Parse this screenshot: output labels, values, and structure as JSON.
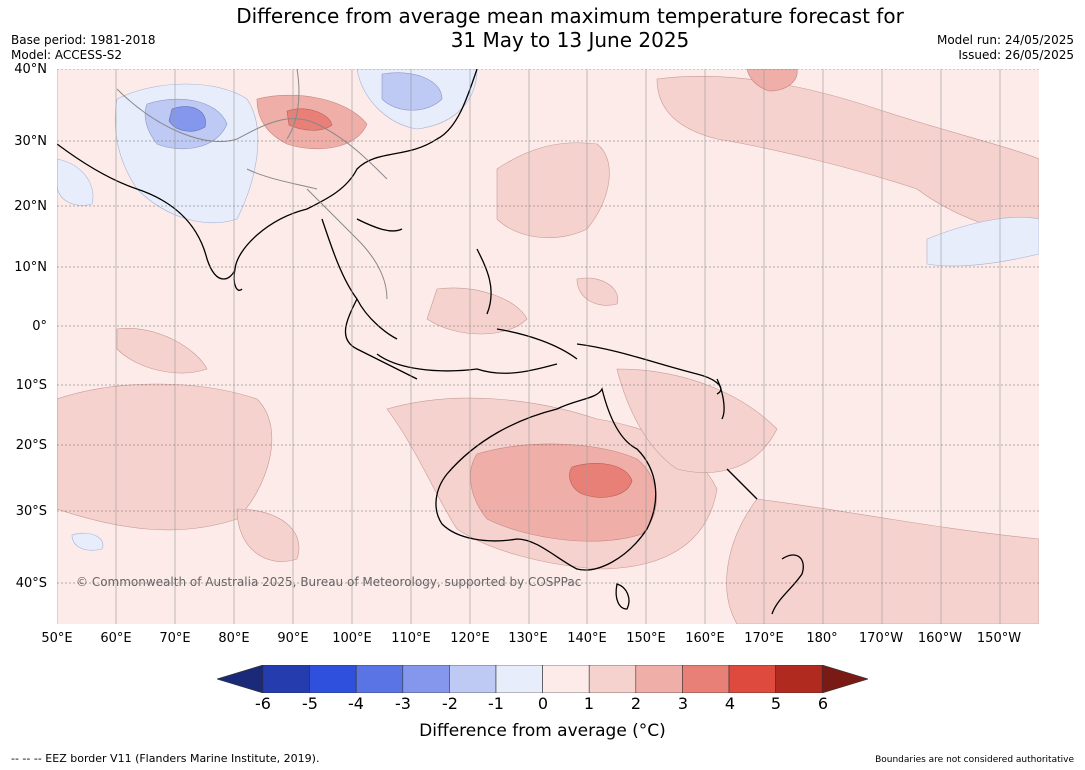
{
  "title": {
    "line1": "Difference from average mean maximum temperature forecast for",
    "line2": "31 May to 13 June 2025"
  },
  "meta_left": {
    "base_period": "Base period: 1981-2018",
    "model": "Model: ACCESS-S2"
  },
  "meta_right": {
    "model_run": "Model run: 24/05/2025",
    "issued": "Issued: 26/05/2025"
  },
  "lat_labels": [
    "40°N",
    "30°N",
    "20°N",
    "10°N",
    "0°",
    "10°S",
    "20°S",
    "30°S",
    "40°S"
  ],
  "lon_labels": [
    "50°E",
    "60°E",
    "70°E",
    "80°E",
    "90°E",
    "100°E",
    "110°E",
    "120°E",
    "130°E",
    "140°E",
    "150°E",
    "160°E",
    "170°E",
    "180°",
    "170°W",
    "160°W",
    "150°W"
  ],
  "copyright": "© Commonwealth of Australia 2025, Bureau of Meteorology, supported by COSPPac",
  "colorbar": {
    "ticks": [
      "-6",
      "-5",
      "-4",
      "-3",
      "-2",
      "-1",
      "0",
      "1",
      "2",
      "3",
      "4",
      "5",
      "6"
    ],
    "colors": [
      "#1a2a78",
      "#253cae",
      "#2f50dd",
      "#5a74e6",
      "#8497ec",
      "#bec9f4",
      "#e8edfb",
      "#fcebe9",
      "#f6d2ce",
      "#efaea8",
      "#e88078",
      "#de4a3e",
      "#b02a20",
      "#7a1a14"
    ],
    "label": "Difference from average (°C)"
  },
  "footer_left": "--  --  -- EEZ border V11 (Flanders Marine Institute, 2019).",
  "footer_right": "Boundaries are not considered authoritative"
}
